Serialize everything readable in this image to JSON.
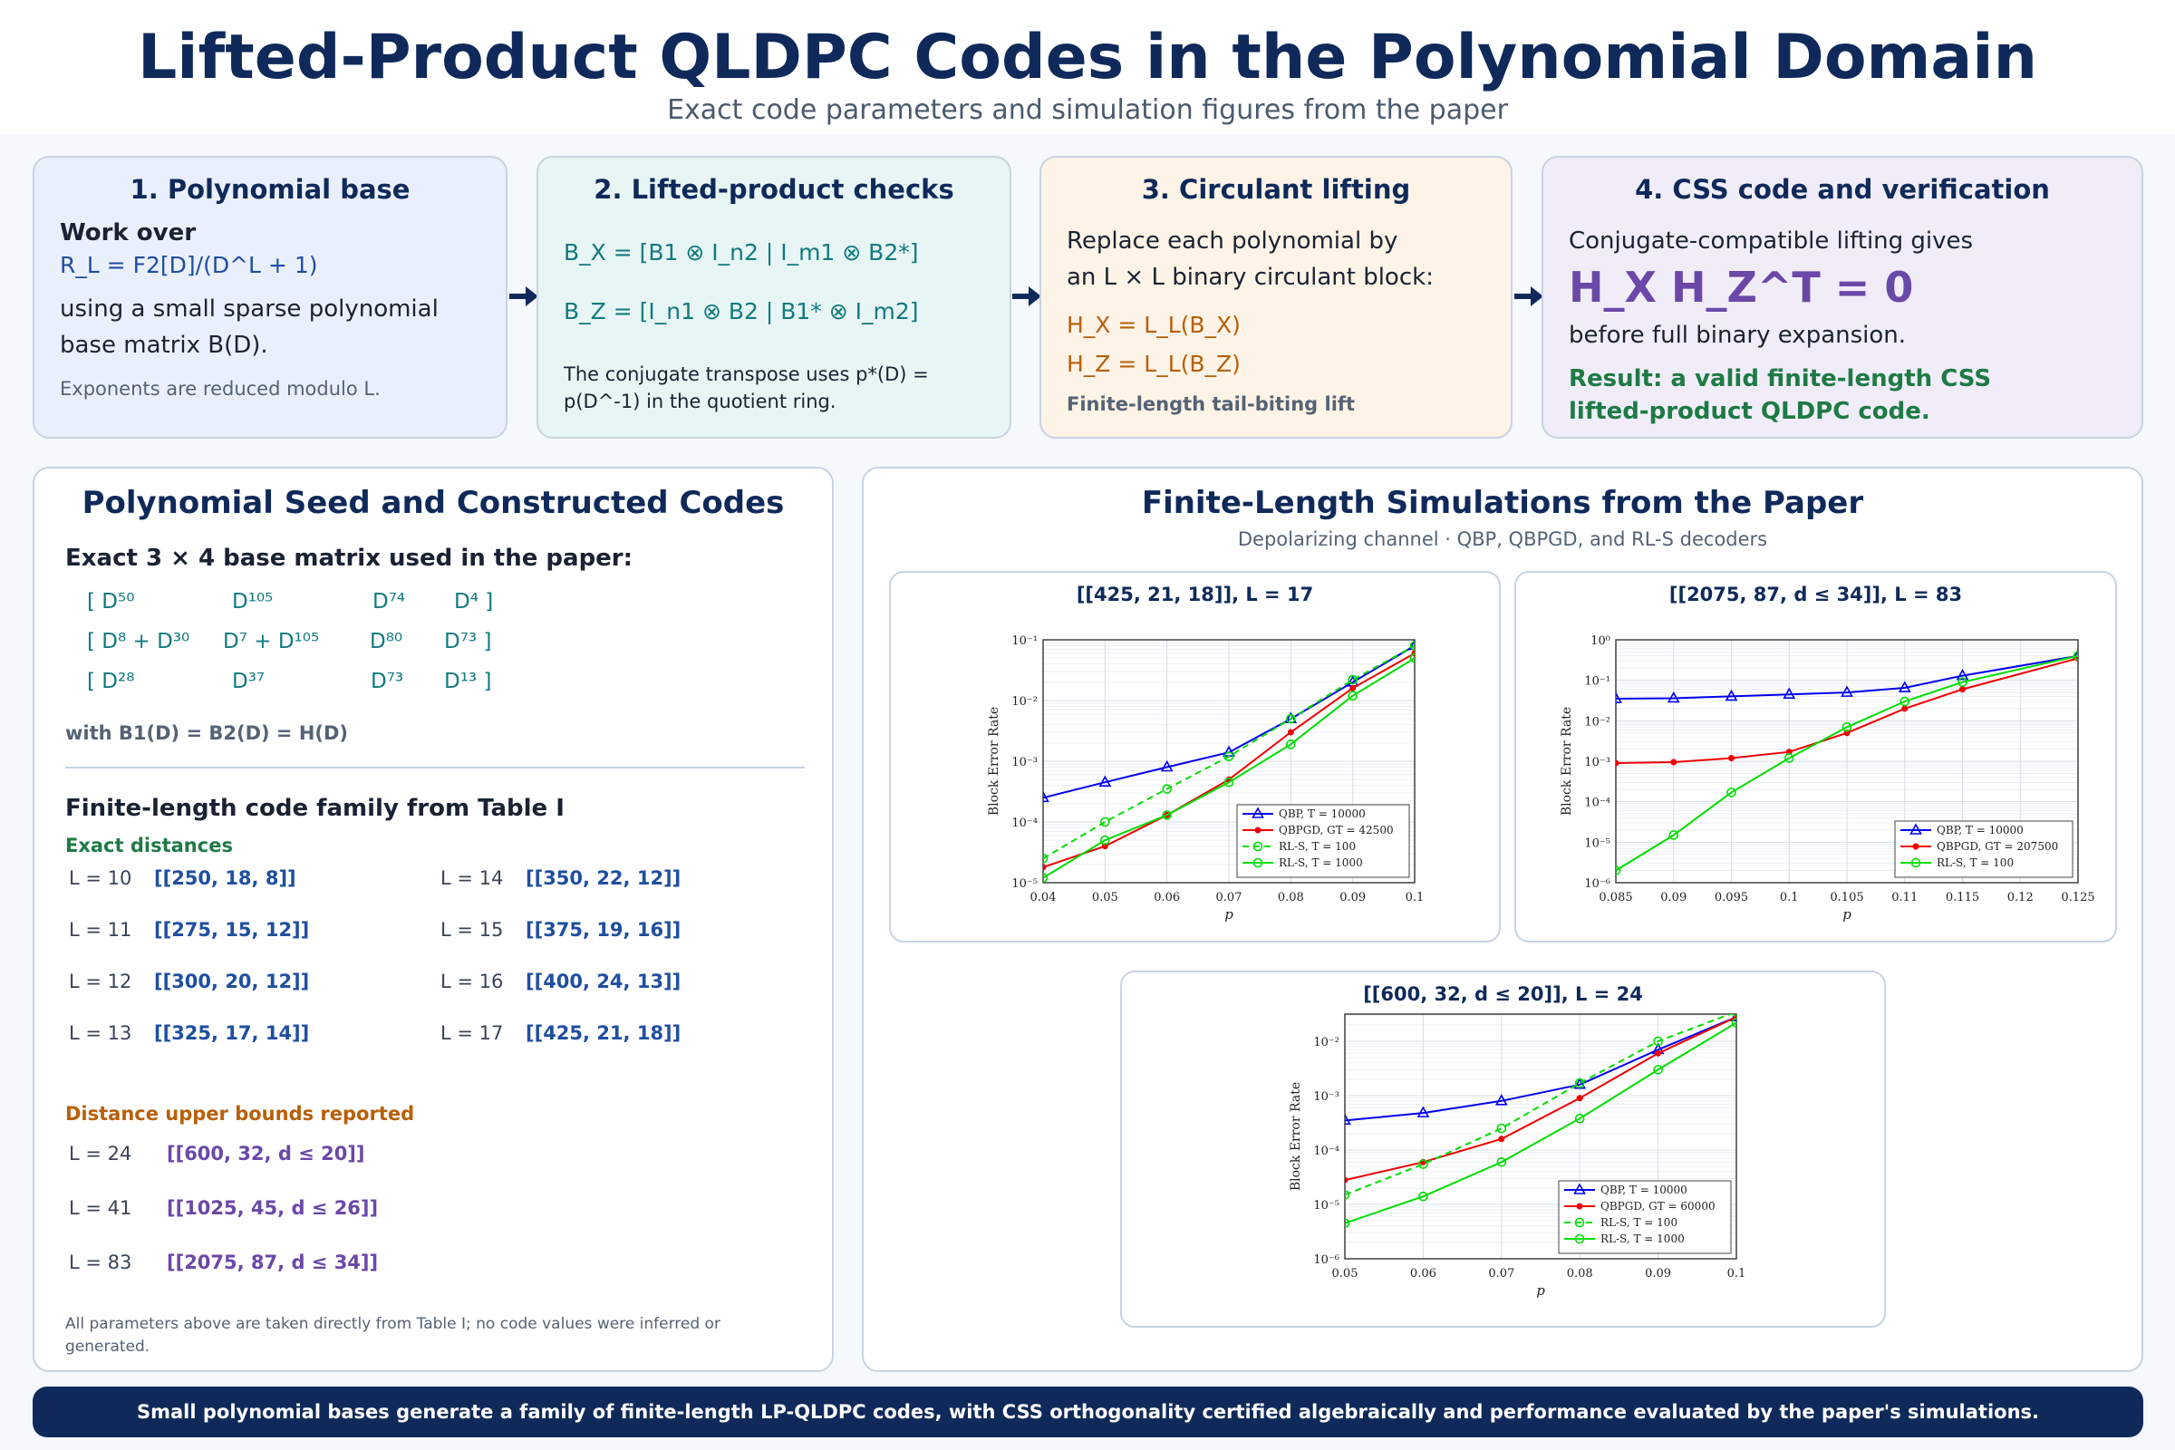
{
  "header": {
    "title": "Lifted-Product QLDPC Codes in the Polynomial Domain",
    "subtitle": "Exact code parameters and simulation figures from the paper"
  },
  "steps": [
    {
      "title": "1. Polynomial base",
      "lead": "Work over",
      "ring": "R_L = F2[D]/(D^L + 1)",
      "body1": "using a small sparse polynomial",
      "body2": "base matrix B(D).",
      "note": "Exponents are reduced modulo L."
    },
    {
      "title": "2. Lifted-product checks",
      "hx": "B_X = [B1 ⊗ I_n2  |  I_m1 ⊗ B2*]",
      "hz": "B_Z = [I_n1 ⊗ B2  |  B1* ⊗ I_m2]",
      "note1": "The conjugate transpose uses p*(D) =",
      "note2": "p(D^-1) in the quotient ring."
    },
    {
      "title": "3. Circulant lifting",
      "body1": "Replace each polynomial by",
      "body2": "an L × L binary circulant block:",
      "hx": "H_X = L_L(B_X)",
      "hz": "H_Z = L_L(B_Z)",
      "note": "Finite-length tail-biting lift"
    },
    {
      "title": "4. CSS code and verification",
      "body1": "Conjugate-compatible lifting gives",
      "eq": "H_X H_Z^T = 0",
      "body2": "before full binary expansion.",
      "result1": "Result: a valid finite-length CSS",
      "result2": "lifted-product QLDPC code."
    }
  ],
  "left_panel": {
    "title": "Polynomial Seed and Constructed Codes",
    "matrix_head": "Exact 3 × 4 base matrix used in the paper:",
    "matrix_rows": [
      [
        "[ D⁵⁰",
        "D¹⁰⁵",
        "D⁷⁴",
        "D⁴ ]"
      ],
      [
        "[ D⁸ + D³⁰",
        "D⁷ + D¹⁰⁵",
        "D⁸⁰",
        "D⁷³ ]"
      ],
      [
        "[ D²⁸",
        "D³⁷",
        "D⁷³",
        "D¹³ ]"
      ]
    ],
    "with_text": "with B1(D) = B2(D) = H(D)",
    "family_head": "Finite-length code family from Table I",
    "exact_head": "Exact distances",
    "exact_codes": [
      {
        "L": "L = 10",
        "code": "[[250, 18, 8]]"
      },
      {
        "L": "L = 11",
        "code": "[[275, 15, 12]]"
      },
      {
        "L": "L = 12",
        "code": "[[300, 20, 12]]"
      },
      {
        "L": "L = 13",
        "code": "[[325, 17, 14]]"
      },
      {
        "L": "L = 14",
        "code": "[[350, 22, 12]]"
      },
      {
        "L": "L = 15",
        "code": "[[375, 19, 16]]"
      },
      {
        "L": "L = 16",
        "code": "[[400, 24, 13]]"
      },
      {
        "L": "L = 17",
        "code": "[[425, 21, 18]]"
      }
    ],
    "bound_head": "Distance upper bounds reported",
    "bound_codes": [
      {
        "L": "L = 24",
        "code": "[[600, 32, d ≤ 20]]"
      },
      {
        "L": "L = 41",
        "code": "[[1025, 45, d ≤ 26]]"
      },
      {
        "L": "L = 83",
        "code": "[[2075, 87, d ≤ 34]]"
      }
    ],
    "fine1": "All parameters above are taken directly from Table I; no code values were inferred or",
    "fine2": "generated."
  },
  "right_panel": {
    "title": "Finite-Length Simulations from the Paper",
    "subtitle": "Depolarizing channel · QBP, QBPGD, and RL-S decoders"
  },
  "colors": {
    "qbp": "#0000ee",
    "qbpgd": "#ee0000",
    "rls": "#00dd00"
  },
  "chart_data": [
    {
      "type": "line",
      "title": "[[425, 21, 18]],  L = 17",
      "xlabel": "p",
      "ylabel": "Block Error Rate",
      "yscale": "log",
      "xlim": [
        0.04,
        0.1
      ],
      "ylim_exp": [
        -5,
        -1
      ],
      "x_ticks": [
        "0.04",
        "0.05",
        "0.06",
        "0.07",
        "0.08",
        "0.09",
        "0.1"
      ],
      "x_tick_values": [
        0.04,
        0.05,
        0.06,
        0.07,
        0.08,
        0.09,
        0.1
      ],
      "y_tick_exps": [
        -5,
        -4,
        -3,
        -2,
        -1
      ],
      "legend_position": "bottom-right",
      "grid": true,
      "series": [
        {
          "name": "QBP, T = 10000",
          "style": "qbp",
          "x": [
            0.04,
            0.05,
            0.06,
            0.07,
            0.08,
            0.09,
            0.1
          ],
          "y": [
            0.00025,
            0.00045,
            0.0008,
            0.0014,
            0.005,
            0.02,
            0.08
          ]
        },
        {
          "name": "QBPGD, GT = 42500",
          "style": "qbpgd",
          "x": [
            0.04,
            0.05,
            0.06,
            0.07,
            0.08,
            0.09,
            0.1
          ],
          "y": [
            1.8e-05,
            4e-05,
            0.00013,
            0.0005,
            0.003,
            0.016,
            0.06
          ]
        },
        {
          "name": "RL-S, T = 100",
          "style": "rls-dash",
          "x": [
            0.04,
            0.05,
            0.06,
            0.07,
            0.08,
            0.09,
            0.1
          ],
          "y": [
            2.5e-05,
            0.0001,
            0.00035,
            0.0012,
            0.005,
            0.022,
            0.08
          ]
        },
        {
          "name": "RL-S, T = 1000",
          "style": "rls",
          "x": [
            0.04,
            0.05,
            0.06,
            0.07,
            0.08,
            0.09,
            0.1
          ],
          "y": [
            1.2e-05,
            5e-05,
            0.00013,
            0.00045,
            0.0019,
            0.012,
            0.05
          ]
        }
      ]
    },
    {
      "type": "line",
      "title": "[[2075, 87, d ≤ 34]],  L = 83",
      "xlabel": "p",
      "ylabel": "Block Error Rate",
      "yscale": "log",
      "xlim": [
        0.085,
        0.125
      ],
      "ylim_exp": [
        -6,
        0
      ],
      "x_ticks": [
        "0.085",
        "0.09",
        "0.095",
        "0.1",
        "0.105",
        "0.11",
        "0.115",
        "0.12",
        "0.125"
      ],
      "x_tick_values": [
        0.085,
        0.09,
        0.095,
        0.1,
        0.105,
        0.11,
        0.115,
        0.12,
        0.125
      ],
      "y_tick_exps": [
        -6,
        -5,
        -4,
        -3,
        -2,
        -1,
        0
      ],
      "legend_position": "bottom-right",
      "grid": true,
      "series": [
        {
          "name": "QBP, T = 10000",
          "style": "qbp",
          "x": [
            0.085,
            0.09,
            0.095,
            0.1,
            0.105,
            0.11,
            0.115,
            0.125
          ],
          "y": [
            0.035,
            0.036,
            0.04,
            0.045,
            0.05,
            0.065,
            0.13,
            0.4
          ]
        },
        {
          "name": "QBPGD, GT = 207500",
          "style": "qbpgd",
          "x": [
            0.085,
            0.09,
            0.095,
            0.1,
            0.105,
            0.11,
            0.115,
            0.125
          ],
          "y": [
            0.0009,
            0.00095,
            0.0012,
            0.0017,
            0.005,
            0.02,
            0.06,
            0.35
          ]
        },
        {
          "name": "RL-S, T = 100",
          "style": "rls",
          "x": [
            0.085,
            0.09,
            0.095,
            0.1,
            0.105,
            0.11,
            0.115,
            0.125
          ],
          "y": [
            2e-06,
            1.5e-05,
            0.00017,
            0.0012,
            0.007,
            0.03,
            0.09,
            0.4
          ]
        }
      ]
    },
    {
      "type": "line",
      "title": "[[600, 32, d ≤ 20]],  L = 24",
      "xlabel": "p",
      "ylabel": "Block Error Rate",
      "yscale": "log",
      "xlim": [
        0.05,
        0.1
      ],
      "ylim_exp": [
        -6,
        -1.5
      ],
      "x_ticks": [
        "0.05",
        "0.06",
        "0.07",
        "0.08",
        "0.09",
        "0.1"
      ],
      "x_tick_values": [
        0.05,
        0.06,
        0.07,
        0.08,
        0.09,
        0.1
      ],
      "y_tick_exps": [
        -6,
        -5,
        -4,
        -3,
        -2
      ],
      "legend_position": "bottom-right",
      "grid": true,
      "series": [
        {
          "name": "QBP, T = 10000",
          "style": "qbp",
          "x": [
            0.05,
            0.06,
            0.07,
            0.08,
            0.09,
            0.1
          ],
          "y": [
            0.00035,
            0.00048,
            0.0008,
            0.0016,
            0.007,
            0.028
          ]
        },
        {
          "name": "QBPGD, GT = 60000",
          "style": "qbpgd",
          "x": [
            0.05,
            0.06,
            0.07,
            0.08,
            0.09,
            0.1
          ],
          "y": [
            2.8e-05,
            6e-05,
            0.00016,
            0.0009,
            0.006,
            0.028
          ]
        },
        {
          "name": "RL-S, T = 100",
          "style": "rls-dash",
          "x": [
            0.05,
            0.06,
            0.07,
            0.08,
            0.09,
            0.1
          ],
          "y": [
            1.5e-05,
            5.5e-05,
            0.00025,
            0.0017,
            0.01,
            0.035
          ]
        },
        {
          "name": "RL-S, T = 1000",
          "style": "rls",
          "x": [
            0.05,
            0.06,
            0.07,
            0.08,
            0.09,
            0.1
          ],
          "y": [
            4.5e-06,
            1.4e-05,
            6e-05,
            0.00038,
            0.003,
            0.022
          ]
        }
      ]
    }
  ],
  "footer": "Small polynomial bases generate a family of finite-length LP-QLDPC codes, with CSS orthogonality certified algebraically and performance evaluated by the paper's simulations."
}
